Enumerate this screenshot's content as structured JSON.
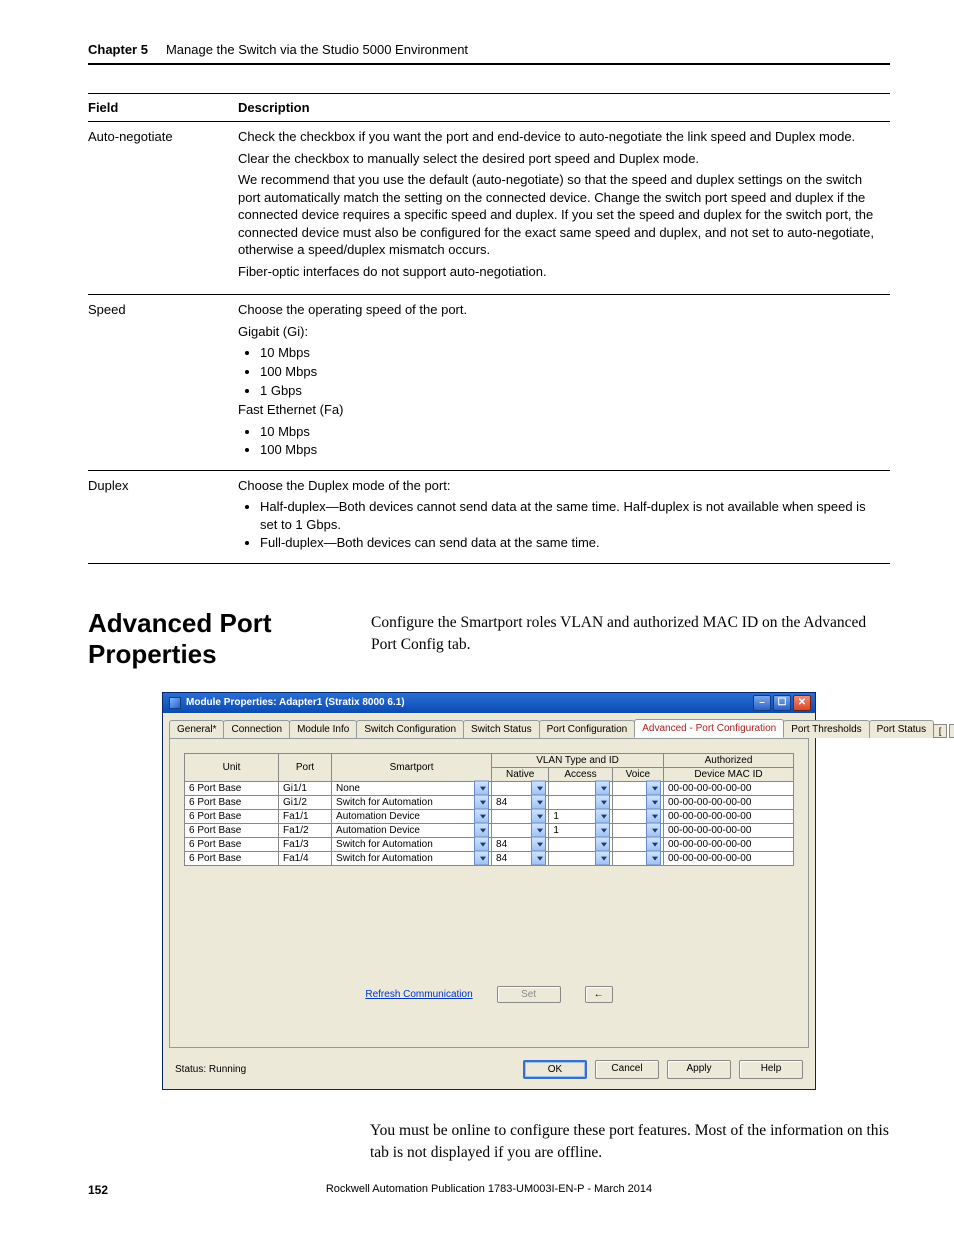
{
  "header": {
    "chapter_label": "Chapter 5",
    "chapter_title": "Manage the Switch via the Studio 5000 Environment"
  },
  "table": {
    "headers": {
      "field": "Field",
      "description": "Description"
    },
    "rows": [
      {
        "field": "Auto-negotiate",
        "desc": {
          "p1": "Check the checkbox if you want the port and end-device to auto-negotiate the link speed and Duplex mode.",
          "p2": "Clear the checkbox to manually select the desired port speed and Duplex mode.",
          "p3": "We recommend that you use the default (auto-negotiate) so that the speed and duplex settings on the switch port automatically match the setting on the connected device. Change the switch port speed and duplex if the connected device requires a specific speed and duplex. If you set the speed and duplex for the switch port, the connected device must also be configured for the exact same speed and duplex, and not set to auto-negotiate, otherwise a speed/duplex mismatch occurs.",
          "p4": "Fiber-optic interfaces do not support auto-negotiation."
        }
      },
      {
        "field": "Speed",
        "desc": {
          "p1": "Choose the operating speed of the port.",
          "gi_head": "Gigabit (Gi):",
          "gi": [
            "10 Mbps",
            "100 Mbps",
            "1 Gbps"
          ],
          "fa_head": "Fast Ethernet (Fa)",
          "fa": [
            "10 Mbps",
            "100 Mbps"
          ]
        }
      },
      {
        "field": "Duplex",
        "desc": {
          "p1": "Choose the Duplex mode of the port:",
          "items": [
            "Half-duplex—Both devices cannot send data at the same time. Half-duplex is not available when speed is set to 1 Gbps.",
            "Full-duplex—Both devices can send data at the same time."
          ]
        }
      }
    ]
  },
  "section": {
    "heading": "Advanced Port Properties",
    "para": "Configure the Smartport roles VLAN and authorized MAC ID on the Advanced Port Config tab."
  },
  "window": {
    "title": "Module Properties: Adapter1 (Stratix 8000 6.1)",
    "tabs": [
      "General*",
      "Connection",
      "Module Info",
      "Switch Configuration",
      "Switch Status",
      "Port Configuration",
      "Advanced - Port Configuration",
      "Port Thresholds",
      "Port Status"
    ],
    "active_tab_index": 6,
    "grid": {
      "headers": {
        "unit": "Unit",
        "port": "Port",
        "smartport": "Smartport",
        "vlan": "VLAN Type and ID",
        "native": "Native",
        "access": "Access",
        "voice": "Voice",
        "mac_top": "Authorized",
        "mac_bottom": "Device MAC ID"
      },
      "rows": [
        {
          "unit": "6 Port Base",
          "port": "Gi1/1",
          "smartport": "None",
          "native": "",
          "access": "",
          "voice": "",
          "mac": "00-00-00-00-00-00"
        },
        {
          "unit": "6 Port Base",
          "port": "Gi1/2",
          "smartport": "Switch for Automation",
          "native": "84",
          "access": "",
          "voice": "",
          "mac": "00-00-00-00-00-00"
        },
        {
          "unit": "6 Port Base",
          "port": "Fa1/1",
          "smartport": "Automation Device",
          "native": "",
          "access": "1",
          "voice": "",
          "mac": "00-00-00-00-00-00"
        },
        {
          "unit": "6 Port Base",
          "port": "Fa1/2",
          "smartport": "Automation Device",
          "native": "",
          "access": "1",
          "voice": "",
          "mac": "00-00-00-00-00-00"
        },
        {
          "unit": "6 Port Base",
          "port": "Fa1/3",
          "smartport": "Switch for Automation",
          "native": "84",
          "access": "",
          "voice": "",
          "mac": "00-00-00-00-00-00"
        },
        {
          "unit": "6 Port Base",
          "port": "Fa1/4",
          "smartport": "Switch for Automation",
          "native": "84",
          "access": "",
          "voice": "",
          "mac": "00-00-00-00-00-00"
        }
      ]
    },
    "actions": {
      "refresh": "Refresh Communication",
      "set": "Set",
      "arrow": "←"
    },
    "status": "Status: Running",
    "buttons": {
      "ok": "OK",
      "cancel": "Cancel",
      "apply": "Apply",
      "help": "Help"
    }
  },
  "follow_para": "You must be online to configure these port features. Most of the information on this tab is not displayed if you are offline.",
  "footer": {
    "page": "152",
    "pub": "Rockwell Automation Publication 1783-UM003I-EN-P - March 2014"
  }
}
